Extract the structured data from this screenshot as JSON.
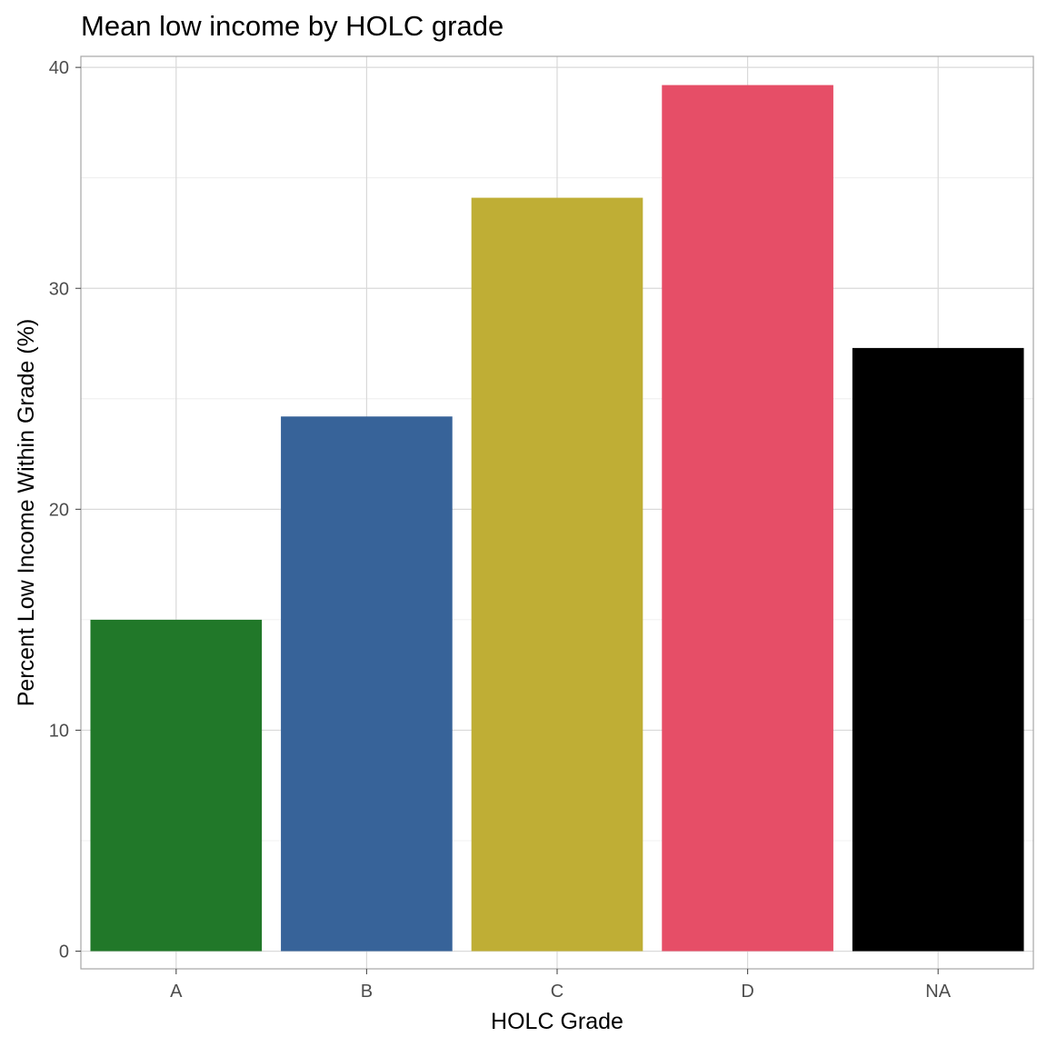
{
  "chart_data": {
    "type": "bar",
    "title": "Mean low income by HOLC grade",
    "xlabel": "HOLC Grade",
    "ylabel": "Percent Low Income Within Grade (%)",
    "categories": [
      "A",
      "B",
      "C",
      "D",
      "NA"
    ],
    "values": [
      15.0,
      24.2,
      34.1,
      39.2,
      27.3
    ],
    "colors": [
      "#217829",
      "#376399",
      "#bfae35",
      "#e64e67",
      "#000000"
    ],
    "ylim": [
      -0.8,
      40.5
    ],
    "yticks": [
      0,
      10,
      20,
      30,
      40
    ],
    "ytick_labels": [
      "0",
      "10",
      "20",
      "30",
      "40"
    ],
    "grid": true,
    "legend": "none"
  }
}
